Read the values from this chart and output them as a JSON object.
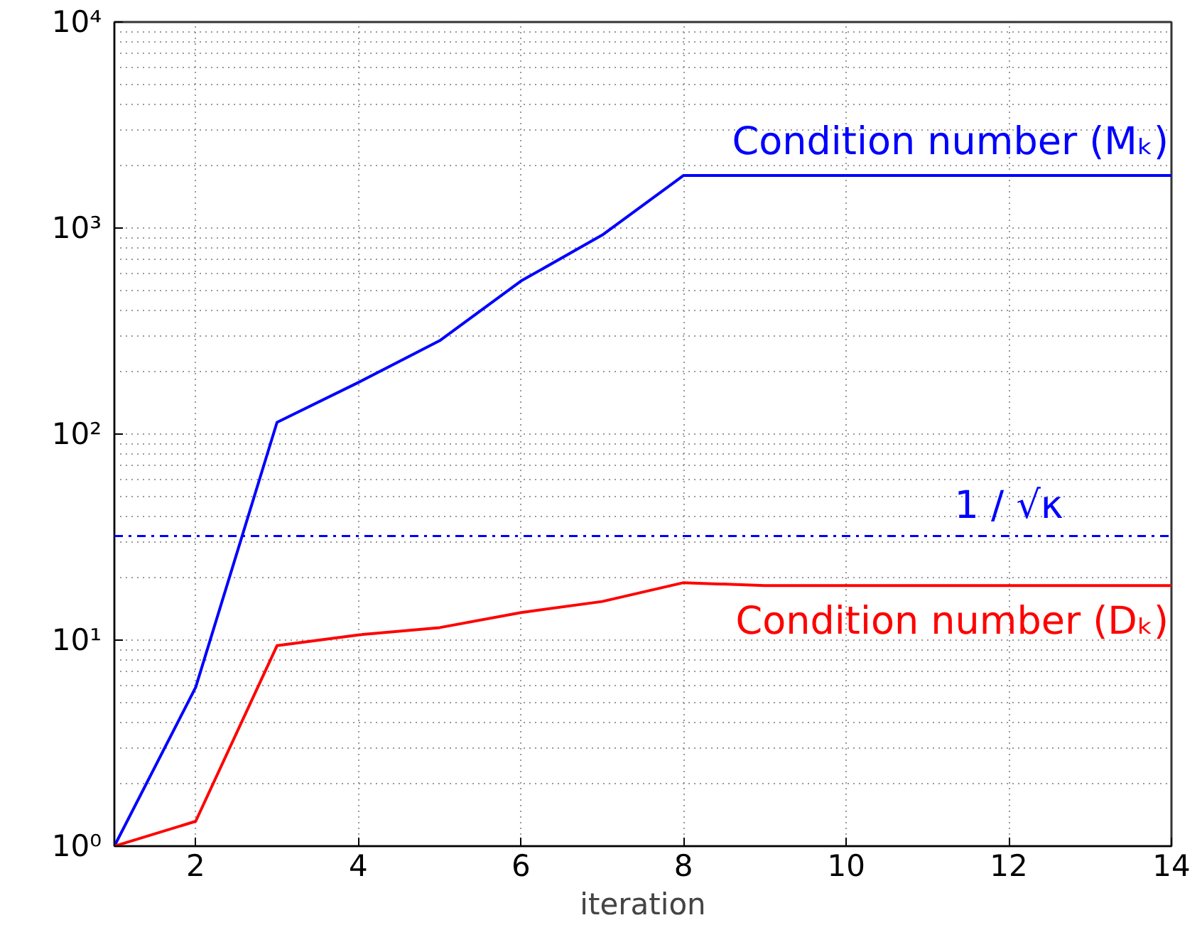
{
  "chart_data": {
    "type": "line",
    "xlabel": "iteration",
    "log": "y",
    "grid": true,
    "line_style": "solid",
    "x": [
      1,
      2,
      3,
      4,
      5,
      6,
      7,
      8,
      9,
      10,
      11,
      12,
      13,
      14
    ],
    "xlim": [
      1,
      14
    ],
    "xticks": [
      2,
      4,
      6,
      8,
      10,
      12,
      14
    ],
    "ylim": [
      1,
      10000
    ],
    "yticks": [
      {
        "value": 1,
        "label": "10⁰"
      },
      {
        "value": 10,
        "label": "10¹"
      },
      {
        "value": 100,
        "label": "10²"
      },
      {
        "value": 1000,
        "label": "10³"
      },
      {
        "value": 10000,
        "label": "10⁴"
      }
    ],
    "series": [
      {
        "name": "Condition number (Mₖ)",
        "color": "#0000ff",
        "values": [
          1,
          5.9,
          114,
          178,
          284,
          553,
          925,
          1800,
          1800,
          1800,
          1800,
          1800,
          1800,
          1800
        ]
      },
      {
        "name": "Condition number (Dₖ)",
        "color": "#ff0000",
        "values": [
          1,
          1.32,
          9.4,
          10.6,
          11.5,
          13.6,
          15.4,
          19,
          18.4,
          18.4,
          18.4,
          18.4,
          18.4,
          18.4
        ]
      }
    ],
    "ref_lines": [
      {
        "axis": "y",
        "value": 32,
        "label": "1 / √κ",
        "color": "#0000ff",
        "line_style": "dashdot"
      }
    ]
  }
}
